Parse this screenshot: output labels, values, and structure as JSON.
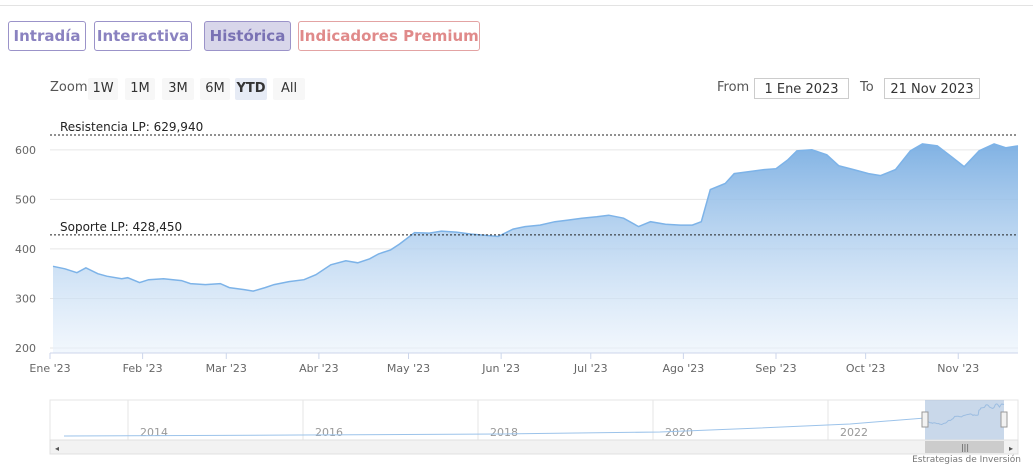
{
  "tabs": [
    {
      "label": "Intradía",
      "state": "normal"
    },
    {
      "label": "Interactiva",
      "state": "normal"
    },
    {
      "label": "Histórica",
      "state": "active"
    },
    {
      "label": "Indicadores Premium",
      "state": "premium"
    }
  ],
  "range_selector": {
    "zoom_label": "Zoom",
    "buttons": [
      "1W",
      "1M",
      "3M",
      "6M",
      "YTD",
      "All"
    ],
    "selected": "YTD",
    "from_label": "From",
    "from_value": "1 Ene 2023",
    "to_label": "To",
    "to_value": "21 Nov 2023"
  },
  "credit": "Estrategias de Inversión",
  "colors": {
    "accent": "#7aaee2",
    "tab_border": "#9b93c9",
    "premium": "#e08a8a",
    "line": "#7db3e8"
  },
  "chart_data": {
    "type": "area",
    "x_ticks": [
      "Ene '23",
      "Feb '23",
      "Mar '23",
      "Abr '23",
      "May '23",
      "Jun '23",
      "Jul '23",
      "Ago '23",
      "Sep '23",
      "Oct '23",
      "Nov '23"
    ],
    "y_ticks": [
      200,
      300,
      400,
      500,
      600
    ],
    "ylim": [
      190,
      640
    ],
    "xlim": [
      "2023-01-01",
      "2023-11-21"
    ],
    "grid": true,
    "series": [
      {
        "x": [
          "2023-01-02",
          "2023-01-06",
          "2023-01-10",
          "2023-01-13",
          "2023-01-17",
          "2023-01-20",
          "2023-01-25",
          "2023-01-27",
          "2023-01-31",
          "2023-02-03",
          "2023-02-08",
          "2023-02-14",
          "2023-02-17",
          "2023-02-22",
          "2023-02-27",
          "2023-03-02",
          "2023-03-07",
          "2023-03-10",
          "2023-03-14",
          "2023-03-17",
          "2023-03-22",
          "2023-03-27",
          "2023-03-31",
          "2023-04-05",
          "2023-04-10",
          "2023-04-14",
          "2023-04-18",
          "2023-04-21",
          "2023-04-25",
          "2023-04-28",
          "2023-05-03",
          "2023-05-08",
          "2023-05-12",
          "2023-05-17",
          "2023-05-22",
          "2023-05-26",
          "2023-05-31",
          "2023-06-05",
          "2023-06-09",
          "2023-06-14",
          "2023-06-19",
          "2023-06-23",
          "2023-06-28",
          "2023-07-03",
          "2023-07-07",
          "2023-07-12",
          "2023-07-17",
          "2023-07-21",
          "2023-07-26",
          "2023-07-31",
          "2023-08-04",
          "2023-08-07",
          "2023-08-10",
          "2023-08-15",
          "2023-08-18",
          "2023-08-23",
          "2023-08-28",
          "2023-09-01",
          "2023-09-05",
          "2023-09-08",
          "2023-09-13",
          "2023-09-18",
          "2023-09-22",
          "2023-09-27",
          "2023-10-02",
          "2023-10-06",
          "2023-10-11",
          "2023-10-16",
          "2023-10-20",
          "2023-10-25",
          "2023-10-30",
          "2023-11-03",
          "2023-11-08",
          "2023-11-13",
          "2023-11-17",
          "2023-11-21"
        ],
        "values": [
          365,
          360,
          352,
          362,
          350,
          345,
          340,
          342,
          332,
          338,
          340,
          336,
          330,
          328,
          330,
          322,
          318,
          315,
          322,
          328,
          334,
          338,
          348,
          368,
          376,
          372,
          380,
          390,
          398,
          410,
          433,
          432,
          436,
          434,
          430,
          428,
          425,
          440,
          445,
          448,
          455,
          458,
          462,
          465,
          468,
          462,
          445,
          455,
          450,
          448,
          448,
          455,
          520,
          532,
          552,
          556,
          560,
          562,
          580,
          598,
          600,
          590,
          568,
          560,
          552,
          548,
          560,
          598,
          612,
          608,
          585,
          566,
          598,
          612,
          604,
          608
        ]
      }
    ],
    "annotations": [
      {
        "label": "Resistencia LP: 629,940",
        "value": 629.94
      },
      {
        "label": "Soporte LP: 428,450",
        "value": 428.45
      }
    ],
    "navigator": {
      "labels": [
        "2014",
        "2016",
        "2018",
        "2020",
        "2022"
      ]
    }
  }
}
